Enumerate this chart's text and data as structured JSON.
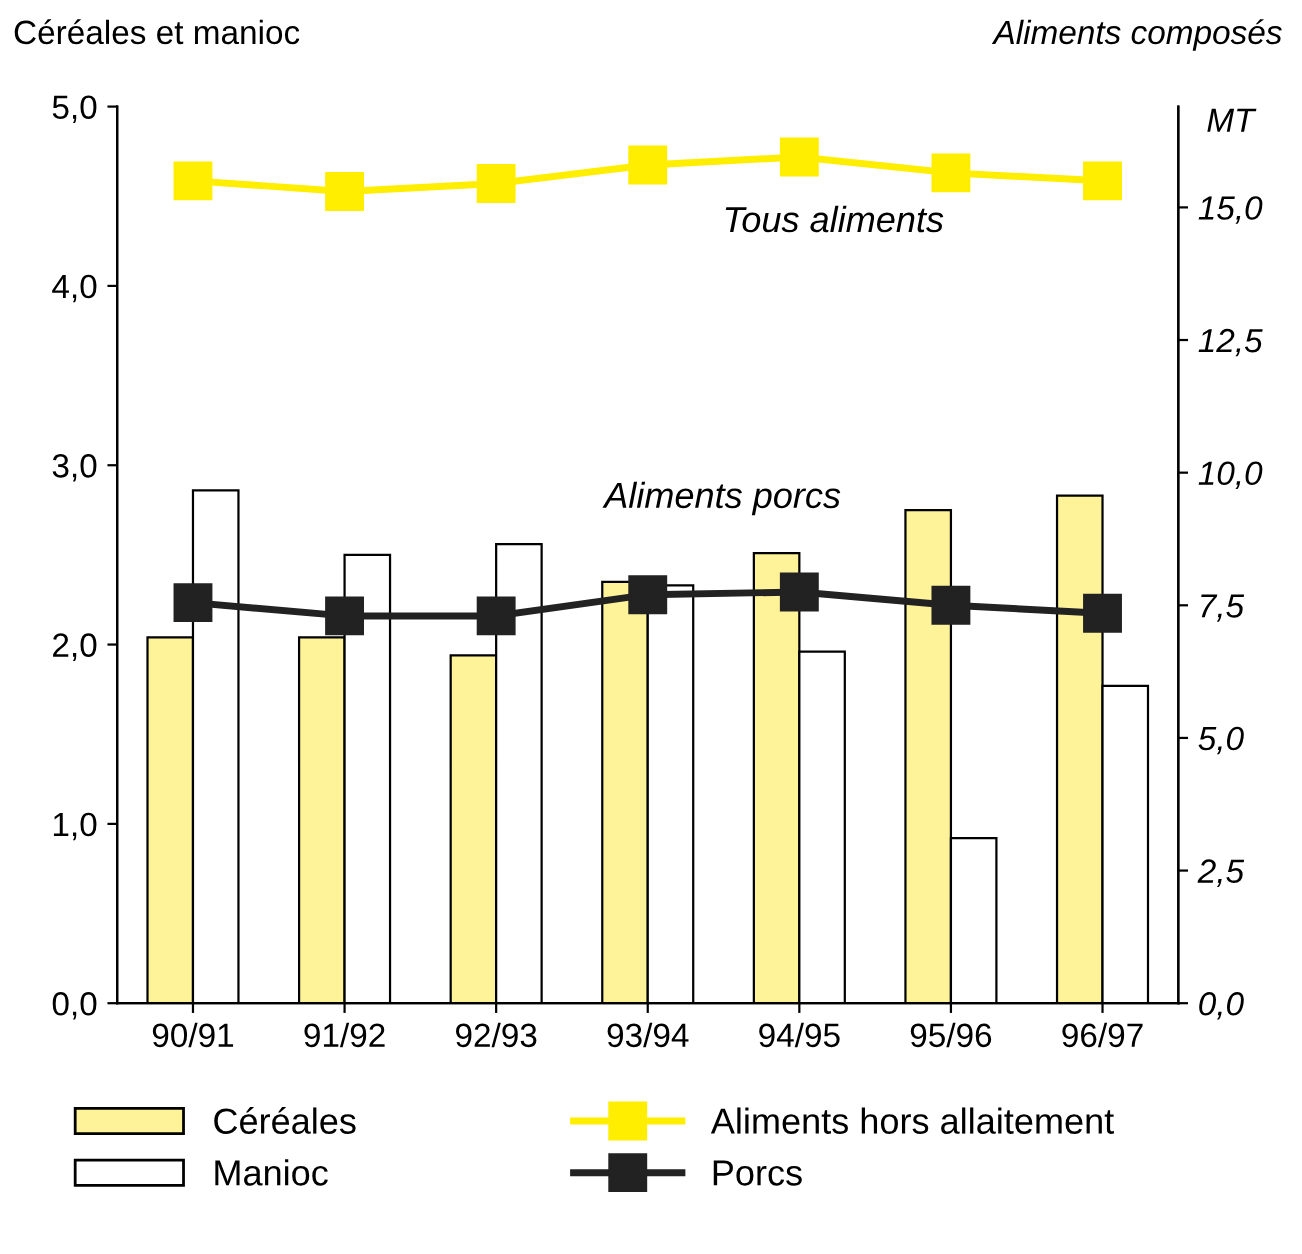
{
  "chart_data": {
    "type": "bar",
    "categories": [
      "90/91",
      "91/92",
      "92/93",
      "93/94",
      "94/95",
      "95/96",
      "96/97"
    ],
    "ylabel": "Céréales et manioc",
    "y2label": "Aliments composés",
    "ylim": [
      0,
      5
    ],
    "yticks": [
      {
        "value": 0,
        "label": "0,0"
      },
      {
        "value": 1,
        "label": "1,0"
      },
      {
        "value": 2,
        "label": "2,0"
      },
      {
        "value": 3,
        "label": "3,0"
      },
      {
        "value": 4,
        "label": "4,0"
      },
      {
        "value": 5,
        "label": "5,0"
      }
    ],
    "y2lim": [
      0,
      16.9
    ],
    "y2ticks": [
      {
        "value": 0,
        "label": "0,0"
      },
      {
        "value": 2.5,
        "label": "2,5"
      },
      {
        "value": 5,
        "label": "5,0"
      },
      {
        "value": 7.5,
        "label": "7,5"
      },
      {
        "value": 10,
        "label": "10,0"
      },
      {
        "value": 12.5,
        "label": "12,5"
      },
      {
        "value": 15,
        "label": "15,0"
      }
    ],
    "series": [
      {
        "name": "Céréales",
        "color": "#fff399",
        "values": [
          2.04,
          2.04,
          1.94,
          2.35,
          2.51,
          2.75,
          2.83
        ]
      },
      {
        "name": "Manioc",
        "color": "#ffffff",
        "values": [
          2.86,
          2.5,
          2.56,
          2.33,
          1.96,
          0.92,
          1.77
        ]
      },
      {
        "name": "Aliments hors allaitement",
        "type": "line",
        "axis": "y2",
        "color": "#ffee00",
        "values": [
          15.5,
          15.3,
          15.45,
          15.8,
          15.95,
          15.65,
          15.5
        ]
      },
      {
        "name": "Porcs",
        "type": "line",
        "axis": "y2",
        "color": "#222222",
        "values": [
          7.55,
          7.3,
          7.3,
          7.7,
          7.75,
          7.5,
          7.35
        ]
      }
    ],
    "marker": "square",
    "grid": false,
    "legend": "bottom",
    "annotations": [
      "Tous aliments",
      "Aliments porcs",
      "MT"
    ]
  }
}
